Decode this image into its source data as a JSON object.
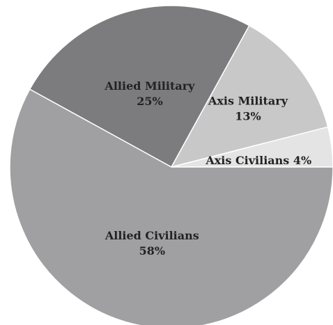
{
  "chart_data": {
    "type": "pie",
    "title": "",
    "start_angle_deg": 0,
    "direction": "counterclockwise",
    "slices": [
      {
        "name": "Axis Civilians",
        "value": 4,
        "pct_label": "4%",
        "color": "#e4e4e4",
        "inline": true
      },
      {
        "name": "Axis Military",
        "value": 13,
        "pct_label": "13%",
        "color": "#c8c8c8",
        "inline": false
      },
      {
        "name": "Allied Military",
        "value": 25,
        "pct_label": "25%",
        "color": "#7c7c7e",
        "inline": false
      },
      {
        "name": "Allied Civilians",
        "value": 58,
        "pct_label": "58%",
        "color": "#a0a0a2",
        "inline": false
      }
    ]
  }
}
